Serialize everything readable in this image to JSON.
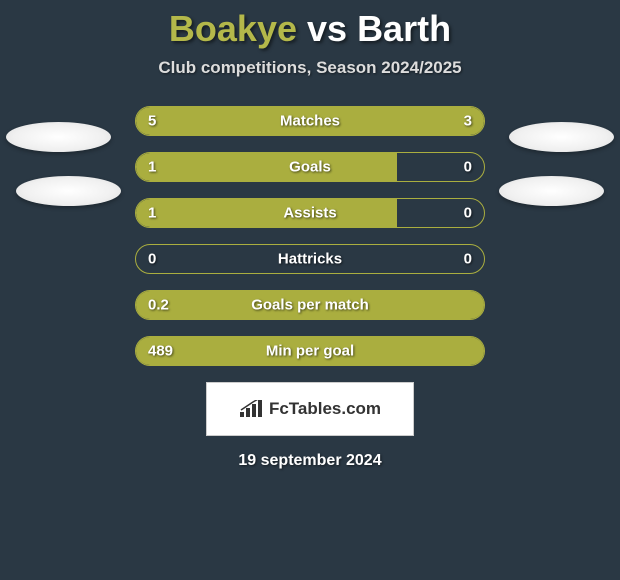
{
  "title": {
    "player1": "Boakye",
    "vs": "vs",
    "player2": "Barth"
  },
  "subtitle": "Club competitions, Season 2024/2025",
  "colors": {
    "background": "#2a3844",
    "bar": "#aaae3f",
    "title_player1": "#b4b84a",
    "text": "#ffffff"
  },
  "stats": [
    {
      "label": "Matches",
      "left_value": "5",
      "right_value": "3",
      "left_pct": 60,
      "right_pct": 40,
      "show_right_value": true
    },
    {
      "label": "Goals",
      "left_value": "1",
      "right_value": "0",
      "left_pct": 75,
      "right_pct": 0,
      "show_right_value": true
    },
    {
      "label": "Assists",
      "left_value": "1",
      "right_value": "0",
      "left_pct": 75,
      "right_pct": 0,
      "show_right_value": true
    },
    {
      "label": "Hattricks",
      "left_value": "0",
      "right_value": "0",
      "left_pct": 0,
      "right_pct": 0,
      "show_right_value": true
    },
    {
      "label": "Goals per match",
      "left_value": "0.2",
      "right_value": "",
      "left_pct": 100,
      "right_pct": 0,
      "show_right_value": false
    },
    {
      "label": "Min per goal",
      "left_value": "489",
      "right_value": "",
      "left_pct": 100,
      "right_pct": 0,
      "show_right_value": false
    }
  ],
  "footer": {
    "brand": "FcTables.com",
    "date": "19 september 2024"
  }
}
